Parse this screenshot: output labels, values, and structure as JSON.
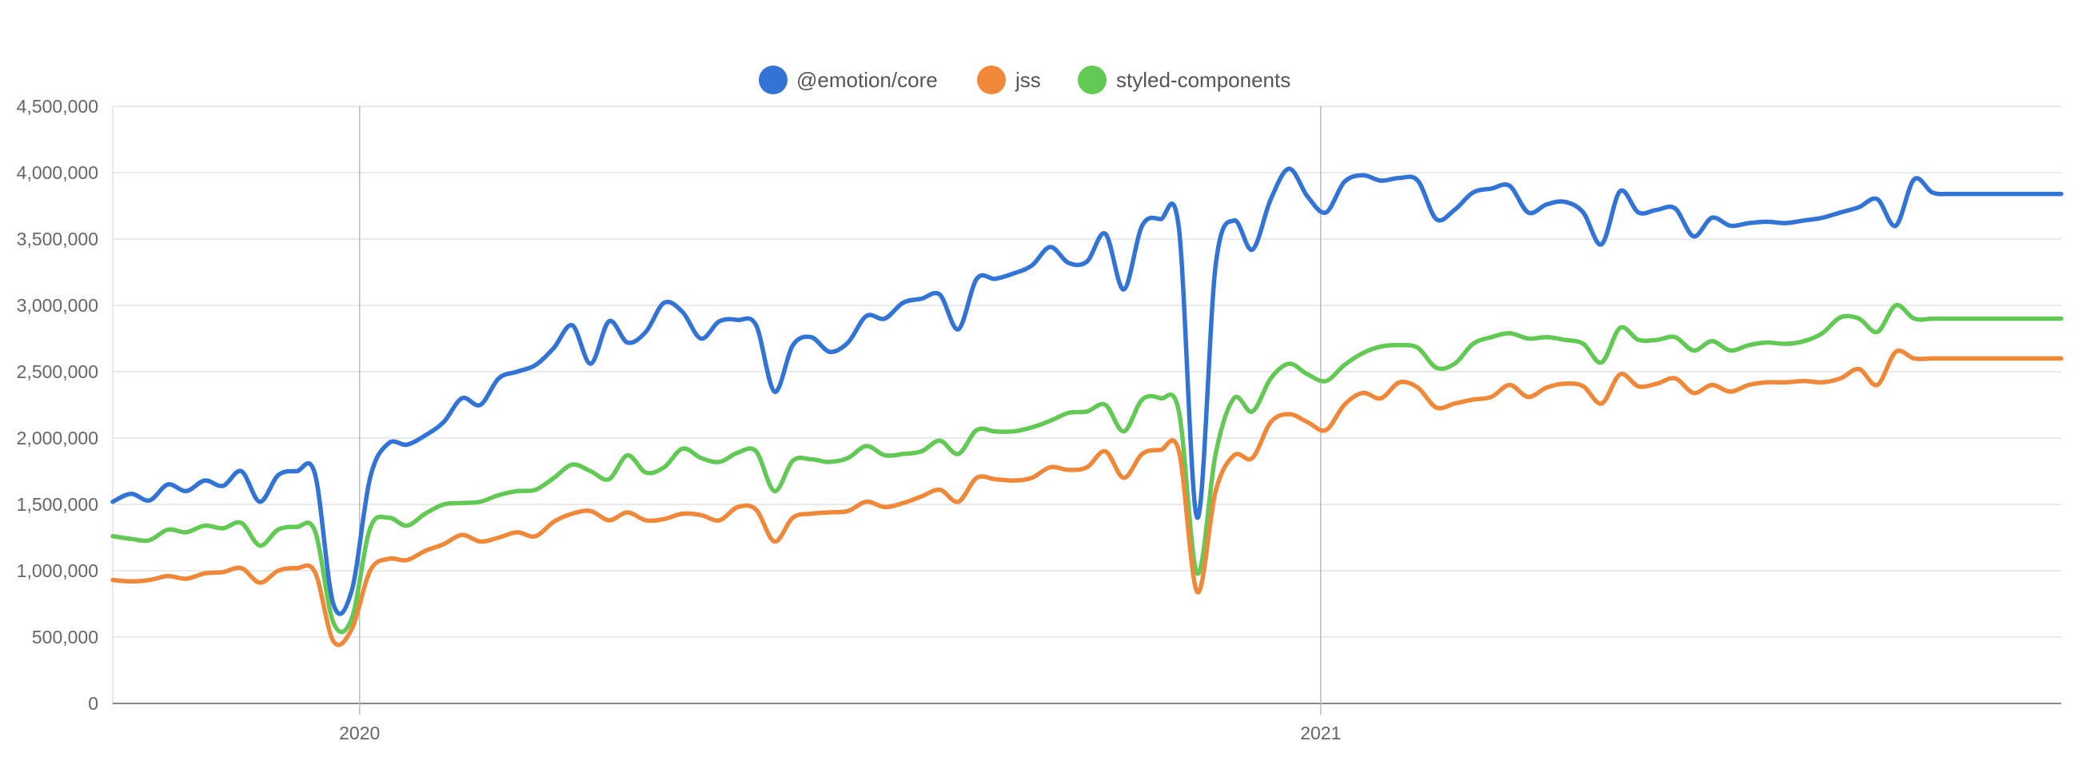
{
  "chart_data": {
    "type": "line",
    "title": "",
    "xlabel": "",
    "ylabel": "",
    "ylim": [
      0,
      4500000
    ],
    "yticks": [
      {
        "value": 0,
        "label": "0"
      },
      {
        "value": 500000,
        "label": "500,000"
      },
      {
        "value": 1000000,
        "label": "1,000,000"
      },
      {
        "value": 1500000,
        "label": "1,500,000"
      },
      {
        "value": 2000000,
        "label": "2,000,000"
      },
      {
        "value": 2500000,
        "label": "2,500,000"
      },
      {
        "value": 3000000,
        "label": "3,000,000"
      },
      {
        "value": 3500000,
        "label": "3,500,000"
      },
      {
        "value": 4000000,
        "label": "4,000,000"
      },
      {
        "value": 4500000,
        "label": "4,500,000"
      }
    ],
    "xlim": [
      "2019-09-29",
      "2021-10-10"
    ],
    "xticks": [
      {
        "value": "2020-01-01",
        "label": "2020"
      },
      {
        "value": "2021-01-01",
        "label": "2021"
      }
    ],
    "grid": true,
    "legend_position": "top-center",
    "x": [
      "2019-09-29",
      "2019-10-06",
      "2019-10-13",
      "2019-10-20",
      "2019-10-27",
      "2019-11-03",
      "2019-11-10",
      "2019-11-17",
      "2019-11-24",
      "2019-12-01",
      "2019-12-08",
      "2019-12-15",
      "2019-12-22",
      "2019-12-29",
      "2020-01-05",
      "2020-01-12",
      "2020-01-19",
      "2020-01-26",
      "2020-02-02",
      "2020-02-09",
      "2020-02-16",
      "2020-02-23",
      "2020-03-01",
      "2020-03-08",
      "2020-03-15",
      "2020-03-22",
      "2020-03-29",
      "2020-04-05",
      "2020-04-12",
      "2020-04-19",
      "2020-04-26",
      "2020-05-03",
      "2020-05-10",
      "2020-05-17",
      "2020-05-24",
      "2020-05-31",
      "2020-06-07",
      "2020-06-14",
      "2020-06-21",
      "2020-06-28",
      "2020-07-05",
      "2020-07-12",
      "2020-07-19",
      "2020-07-26",
      "2020-08-02",
      "2020-08-09",
      "2020-08-16",
      "2020-08-23",
      "2020-08-30",
      "2020-09-06",
      "2020-09-13",
      "2020-09-20",
      "2020-09-27",
      "2020-10-04",
      "2020-10-11",
      "2020-10-18",
      "2020-10-25",
      "2020-11-01",
      "2020-11-08",
      "2020-11-15",
      "2020-11-22",
      "2020-11-29",
      "2020-12-06",
      "2020-12-13",
      "2020-12-20",
      "2020-12-27",
      "2021-01-03",
      "2021-01-10",
      "2021-01-17",
      "2021-01-24",
      "2021-01-31",
      "2021-02-07",
      "2021-02-14",
      "2021-02-21",
      "2021-02-28",
      "2021-03-07",
      "2021-03-14",
      "2021-03-21",
      "2021-03-28",
      "2021-04-04",
      "2021-04-11",
      "2021-04-18",
      "2021-04-25",
      "2021-05-02",
      "2021-05-09",
      "2021-05-16",
      "2021-05-23",
      "2021-05-30",
      "2021-06-06",
      "2021-06-13",
      "2021-06-20",
      "2021-06-27",
      "2021-07-04",
      "2021-07-11",
      "2021-07-18",
      "2021-07-25",
      "2021-08-01",
      "2021-08-08",
      "2021-08-15",
      "2021-08-22",
      "2021-08-29",
      "2021-09-05",
      "2021-09-12",
      "2021-09-19",
      "2021-09-26",
      "2021-10-03",
      "2021-10-10"
    ],
    "series": [
      {
        "name": "@emotion/core",
        "color": "#3273d6",
        "values": [
          1520000,
          1580000,
          1530000,
          1650000,
          1600000,
          1680000,
          1640000,
          1750000,
          1520000,
          1720000,
          1750000,
          1730000,
          750000,
          850000,
          1700000,
          1960000,
          1950000,
          2020000,
          2120000,
          2300000,
          2250000,
          2450000,
          2500000,
          2550000,
          2680000,
          2850000,
          2560000,
          2880000,
          2720000,
          2800000,
          3020000,
          2950000,
          2750000,
          2880000,
          2890000,
          2850000,
          2350000,
          2700000,
          2760000,
          2650000,
          2720000,
          2920000,
          2900000,
          3020000,
          3050000,
          3080000,
          2820000,
          3200000,
          3200000,
          3240000,
          3300000,
          3440000,
          3320000,
          3330000,
          3540000,
          3120000,
          3600000,
          3650000,
          3580000,
          1400000,
          3300000,
          3640000,
          3420000,
          3800000,
          4030000,
          3820000,
          3700000,
          3930000,
          3980000,
          3940000,
          3960000,
          3940000,
          3650000,
          3720000,
          3850000,
          3880000,
          3900000,
          3700000,
          3760000,
          3780000,
          3700000,
          3460000,
          3860000,
          3700000,
          3720000,
          3730000,
          3520000,
          3660000,
          3600000,
          3620000,
          3630000,
          3620000,
          3640000,
          3660000,
          3700000,
          3740000,
          3800000,
          3600000,
          3950000,
          3850000,
          3840000,
          3840000,
          3840000,
          3840000,
          3840000,
          3840000,
          3840000
        ]
      },
      {
        "name": "jss",
        "color": "#f0883a",
        "values": [
          930000,
          920000,
          930000,
          960000,
          940000,
          980000,
          990000,
          1020000,
          910000,
          1000000,
          1020000,
          990000,
          470000,
          560000,
          1000000,
          1090000,
          1080000,
          1150000,
          1200000,
          1270000,
          1220000,
          1250000,
          1290000,
          1260000,
          1370000,
          1430000,
          1450000,
          1380000,
          1440000,
          1380000,
          1390000,
          1430000,
          1420000,
          1380000,
          1480000,
          1460000,
          1220000,
          1400000,
          1430000,
          1440000,
          1450000,
          1520000,
          1480000,
          1510000,
          1560000,
          1610000,
          1520000,
          1700000,
          1690000,
          1680000,
          1700000,
          1780000,
          1760000,
          1780000,
          1900000,
          1700000,
          1880000,
          1910000,
          1900000,
          840000,
          1600000,
          1870000,
          1850000,
          2120000,
          2180000,
          2120000,
          2060000,
          2250000,
          2340000,
          2300000,
          2420000,
          2380000,
          2230000,
          2260000,
          2290000,
          2310000,
          2400000,
          2310000,
          2380000,
          2410000,
          2390000,
          2260000,
          2480000,
          2390000,
          2410000,
          2450000,
          2340000,
          2400000,
          2350000,
          2400000,
          2420000,
          2420000,
          2430000,
          2420000,
          2450000,
          2520000,
          2400000,
          2650000,
          2600000,
          2600000,
          2600000,
          2600000,
          2600000,
          2600000,
          2600000,
          2600000,
          2600000
        ]
      },
      {
        "name": "styled-components",
        "color": "#62c955",
        "values": [
          1260000,
          1240000,
          1230000,
          1310000,
          1290000,
          1340000,
          1320000,
          1360000,
          1190000,
          1310000,
          1330000,
          1300000,
          610000,
          640000,
          1320000,
          1400000,
          1340000,
          1430000,
          1500000,
          1510000,
          1520000,
          1570000,
          1600000,
          1610000,
          1700000,
          1800000,
          1750000,
          1690000,
          1870000,
          1740000,
          1780000,
          1920000,
          1850000,
          1820000,
          1890000,
          1900000,
          1600000,
          1830000,
          1840000,
          1820000,
          1850000,
          1940000,
          1870000,
          1880000,
          1900000,
          1980000,
          1880000,
          2060000,
          2050000,
          2050000,
          2080000,
          2130000,
          2190000,
          2200000,
          2250000,
          2050000,
          2290000,
          2300000,
          2200000,
          980000,
          1880000,
          2300000,
          2200000,
          2450000,
          2560000,
          2480000,
          2430000,
          2550000,
          2640000,
          2690000,
          2700000,
          2680000,
          2530000,
          2560000,
          2710000,
          2760000,
          2790000,
          2750000,
          2760000,
          2740000,
          2710000,
          2570000,
          2830000,
          2740000,
          2740000,
          2760000,
          2660000,
          2730000,
          2660000,
          2700000,
          2720000,
          2710000,
          2730000,
          2790000,
          2910000,
          2900000,
          2800000,
          3000000,
          2900000,
          2900000,
          2900000,
          2900000,
          2900000,
          2900000,
          2900000,
          2900000,
          2900000
        ]
      }
    ]
  }
}
